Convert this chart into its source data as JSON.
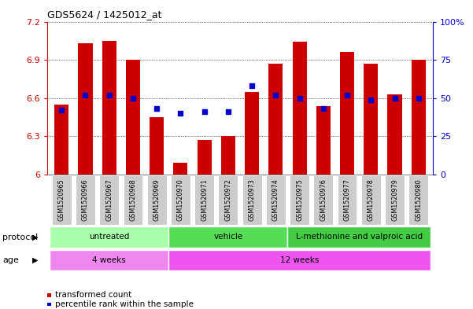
{
  "title": "GDS5624 / 1425012_at",
  "samples": [
    "GSM1520965",
    "GSM1520966",
    "GSM1520967",
    "GSM1520968",
    "GSM1520969",
    "GSM1520970",
    "GSM1520971",
    "GSM1520972",
    "GSM1520973",
    "GSM1520974",
    "GSM1520975",
    "GSM1520976",
    "GSM1520977",
    "GSM1520978",
    "GSM1520979",
    "GSM1520980"
  ],
  "bar_values": [
    6.55,
    7.03,
    7.05,
    6.9,
    6.45,
    6.09,
    6.27,
    6.3,
    6.65,
    6.87,
    7.04,
    6.54,
    6.96,
    6.87,
    6.63,
    6.9
  ],
  "percentile_values": [
    42,
    52,
    52,
    50,
    43,
    40,
    41,
    41,
    58,
    52,
    50,
    43,
    52,
    49,
    50,
    50
  ],
  "ymin": 6.0,
  "ymax": 7.2,
  "yticks": [
    6.0,
    6.3,
    6.6,
    6.9,
    7.2
  ],
  "ytick_labels": [
    "6",
    "6.3",
    "6.6",
    "6.9",
    "7.2"
  ],
  "right_yticks": [
    0,
    25,
    50,
    75,
    100
  ],
  "right_ytick_labels": [
    "0",
    "25",
    "50",
    "75",
    "100%"
  ],
  "bar_color": "#cc0000",
  "dot_color": "#0000cc",
  "left_axis_color": "#cc0000",
  "right_axis_color": "#0000cc",
  "protocol_groups": [
    {
      "label": "untreated",
      "start": 0,
      "end": 5,
      "color": "#aaffaa"
    },
    {
      "label": "vehicle",
      "start": 5,
      "end": 10,
      "color": "#55dd55"
    },
    {
      "label": "L-methionine and valproic acid",
      "start": 10,
      "end": 16,
      "color": "#44cc44"
    }
  ],
  "age_groups": [
    {
      "label": "4 weeks",
      "start": 0,
      "end": 5,
      "color": "#ee88ee"
    },
    {
      "label": "12 weeks",
      "start": 5,
      "end": 16,
      "color": "#ee55ee"
    }
  ],
  "protocol_label": "protocol",
  "age_label": "age",
  "legend_items": [
    {
      "color": "#cc0000",
      "label": "transformed count"
    },
    {
      "color": "#0000cc",
      "label": "percentile rank within the sample"
    }
  ],
  "bar_width": 0.6,
  "background_color": "#ffffff",
  "tick_bg_color": "#cccccc",
  "border_color": "#888888"
}
